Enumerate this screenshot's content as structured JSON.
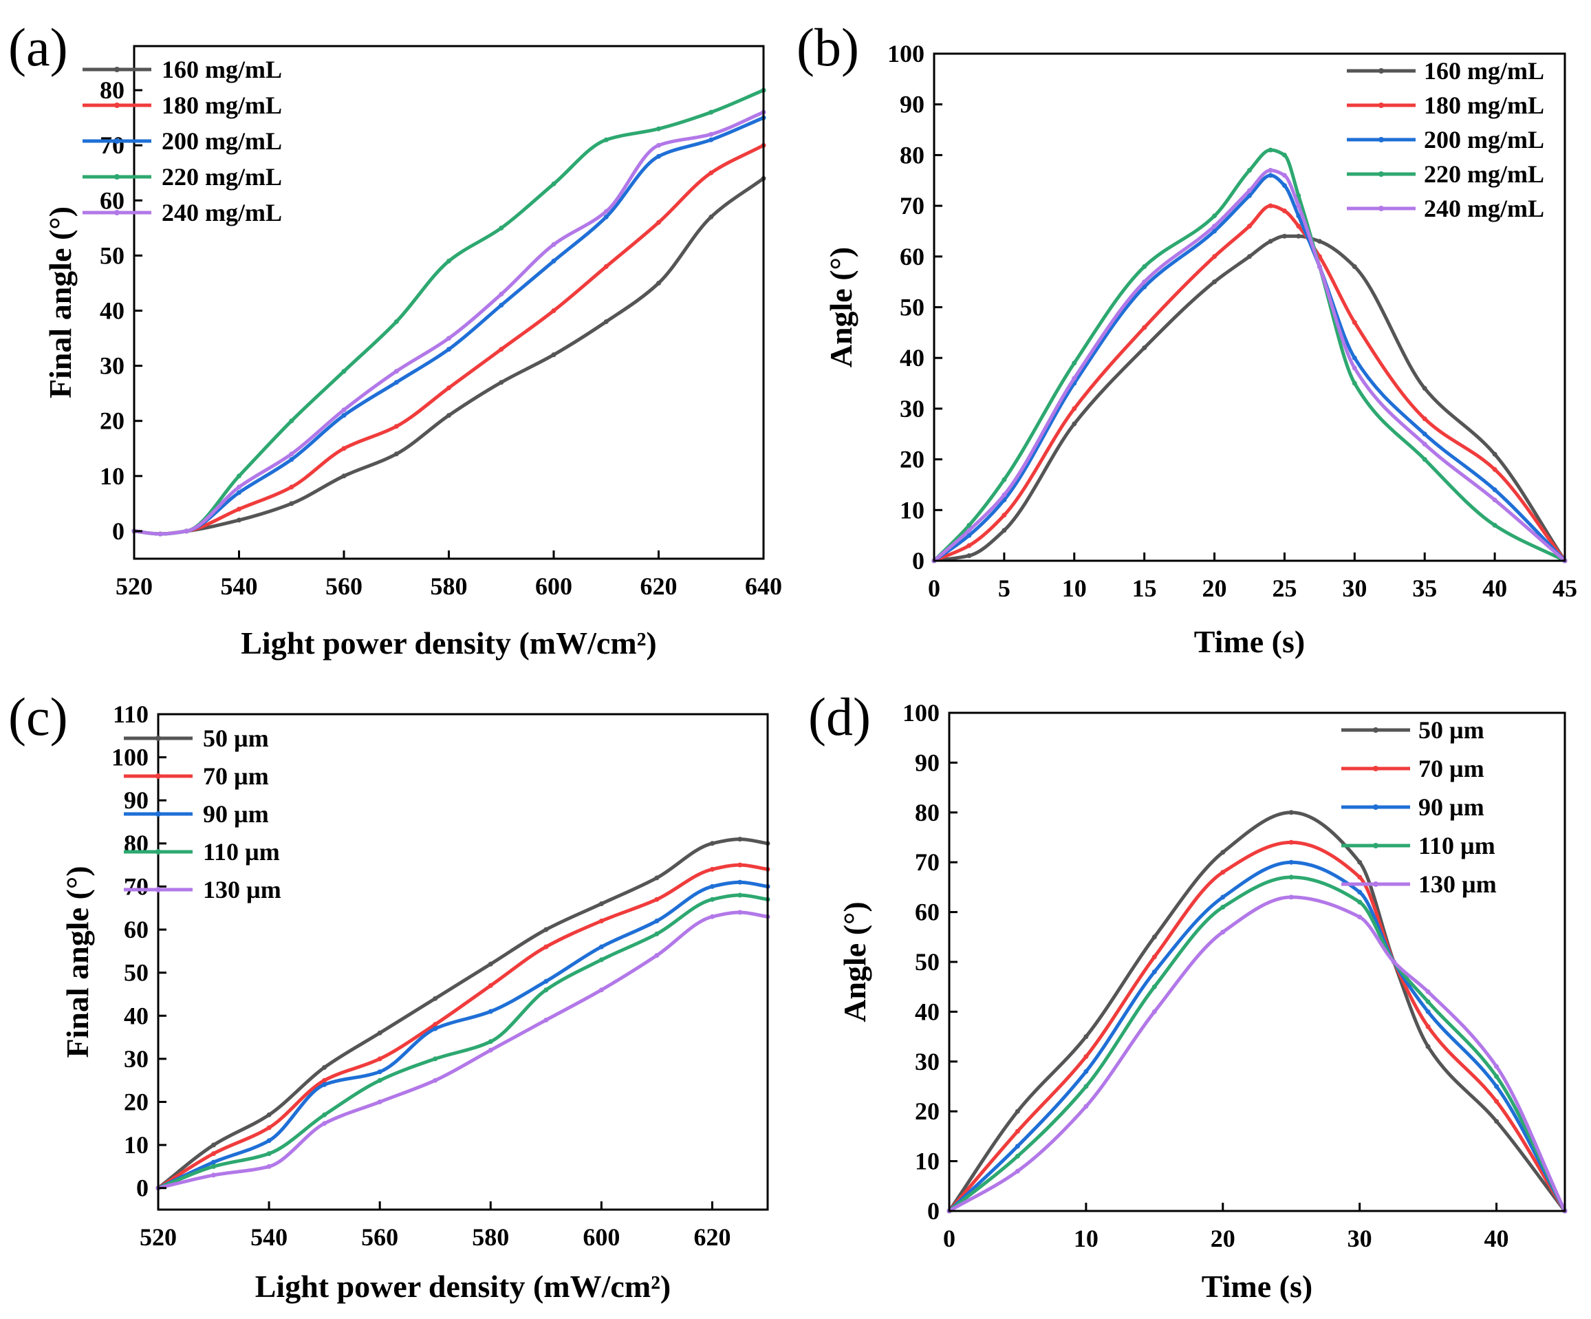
{
  "chart_data": [
    {
      "panel": "(a)",
      "type": "line",
      "xlabel": "Light power density (mW/cm²)",
      "ylabel": "Final angle (°)",
      "xlim": [
        520,
        640
      ],
      "ylim": [
        -5,
        88
      ],
      "xticks": [
        "520",
        "540",
        "560",
        "580",
        "600",
        "620",
        "640"
      ],
      "yticks": [
        "0",
        "10",
        "20",
        "30",
        "40",
        "50",
        "60",
        "70",
        "80"
      ],
      "legend_position": "top-left",
      "x": [
        520,
        525,
        530,
        540,
        550,
        560,
        570,
        580,
        590,
        600,
        610,
        620,
        630,
        640
      ],
      "series": [
        {
          "name": "160 mg/mL",
          "color": "#555555",
          "values": [
            0,
            -0.5,
            0,
            2,
            5,
            10,
            14,
            21,
            27,
            32,
            38,
            45,
            57,
            64
          ]
        },
        {
          "name": "180 mg/mL",
          "color": "#f03c3c",
          "values": [
            0,
            -0.5,
            0,
            4,
            8,
            15,
            19,
            26,
            33,
            40,
            48,
            56,
            65,
            70
          ]
        },
        {
          "name": "200 mg/mL",
          "color": "#1f6fd6",
          "values": [
            0,
            -0.5,
            0,
            7,
            13,
            21,
            27,
            33,
            41,
            49,
            57,
            68,
            71,
            75
          ]
        },
        {
          "name": "220 mg/mL",
          "color": "#2da870",
          "values": [
            0,
            -0.5,
            0,
            10,
            20,
            29,
            38,
            49,
            55,
            63,
            71,
            73,
            76,
            80
          ]
        },
        {
          "name": "240 mg/mL",
          "color": "#b278e8",
          "values": [
            0,
            -0.5,
            0,
            8,
            14,
            22,
            29,
            35,
            43,
            52,
            58,
            70,
            72,
            76
          ]
        }
      ]
    },
    {
      "panel": "(b)",
      "type": "line",
      "xlabel": "Time (s)",
      "ylabel": "Angle (°)",
      "xlim": [
        0,
        45
      ],
      "ylim": [
        0,
        100
      ],
      "xticks": [
        "0",
        "5",
        "10",
        "15",
        "20",
        "25",
        "30",
        "35",
        "40",
        "45"
      ],
      "yticks": [
        "0",
        "10",
        "20",
        "30",
        "40",
        "50",
        "60",
        "70",
        "80",
        "90",
        "100"
      ],
      "legend_position": "top-right",
      "x": [
        0,
        2.5,
        5,
        10,
        15,
        20,
        22.5,
        24,
        25,
        26,
        27.5,
        30,
        35,
        40,
        45
      ],
      "series": [
        {
          "name": "160 mg/mL",
          "color": "#555555",
          "values": [
            0,
            1,
            6,
            27,
            42,
            55,
            60,
            63,
            64,
            64,
            63,
            58,
            34,
            21,
            0
          ]
        },
        {
          "name": "180 mg/mL",
          "color": "#f03c3c",
          "values": [
            0,
            3,
            9,
            30,
            46,
            60,
            66,
            70,
            69,
            66,
            60,
            47,
            28,
            18,
            0
          ]
        },
        {
          "name": "200 mg/mL",
          "color": "#1f6fd6",
          "values": [
            0,
            5,
            12,
            35,
            54,
            65,
            72,
            76,
            74,
            68,
            58,
            40,
            25,
            14,
            0
          ]
        },
        {
          "name": "220 mg/mL",
          "color": "#2da870",
          "values": [
            0,
            7,
            16,
            39,
            58,
            68,
            77,
            81,
            80,
            72,
            58,
            35,
            20,
            7,
            0
          ]
        },
        {
          "name": "240 mg/mL",
          "color": "#b278e8",
          "values": [
            0,
            6,
            13,
            36,
            55,
            66,
            73,
            77,
            76,
            70,
            58,
            38,
            23,
            12,
            0
          ]
        }
      ]
    },
    {
      "panel": "(c)",
      "type": "line",
      "xlabel": "Light power density (mW/cm²)",
      "ylabel": "Final angle (°)",
      "xlim": [
        520,
        630
      ],
      "ylim": [
        -5,
        110
      ],
      "xticks": [
        "520",
        "540",
        "560",
        "580",
        "600",
        "620"
      ],
      "yticks": [
        "0",
        "10",
        "20",
        "30",
        "40",
        "50",
        "60",
        "70",
        "80",
        "90",
        "100",
        "110"
      ],
      "legend_position": "top-left",
      "x": [
        520,
        530,
        540,
        550,
        560,
        570,
        580,
        590,
        600,
        610,
        620,
        625,
        630
      ],
      "series": [
        {
          "name": "50 µm",
          "color": "#555555",
          "values": [
            0,
            10,
            17,
            28,
            36,
            44,
            52,
            60,
            66,
            72,
            80,
            81,
            80
          ]
        },
        {
          "name": "70 µm",
          "color": "#f03c3c",
          "values": [
            0,
            8,
            14,
            25,
            30,
            38,
            47,
            56,
            62,
            67,
            74,
            75,
            74
          ]
        },
        {
          "name": "90 µm",
          "color": "#1f6fd6",
          "values": [
            0,
            6,
            11,
            24,
            27,
            37,
            41,
            48,
            56,
            62,
            70,
            71,
            70
          ]
        },
        {
          "name": "110 µm",
          "color": "#2da870",
          "values": [
            0,
            5,
            8,
            17,
            25,
            30,
            34,
            46,
            53,
            59,
            67,
            68,
            67
          ]
        },
        {
          "name": "130 µm",
          "color": "#b278e8",
          "values": [
            0,
            3,
            5,
            15,
            20,
            25,
            32,
            39,
            46,
            54,
            63,
            64,
            63
          ]
        }
      ]
    },
    {
      "panel": "(d)",
      "type": "line",
      "xlabel": "Time (s)",
      "ylabel": "Angle (°)",
      "xlim": [
        0,
        45
      ],
      "ylim": [
        0,
        100
      ],
      "xticks": [
        "0",
        "10",
        "20",
        "30",
        "40"
      ],
      "yticks": [
        "0",
        "10",
        "20",
        "30",
        "40",
        "50",
        "60",
        "70",
        "80",
        "90",
        "100"
      ],
      "legend_position": "top-right",
      "x": [
        0,
        5,
        10,
        15,
        20,
        25,
        30,
        32.5,
        35,
        40,
        45
      ],
      "series": [
        {
          "name": "50 µm",
          "color": "#555555",
          "values": [
            0,
            20,
            35,
            55,
            72,
            80,
            70,
            50,
            33,
            18,
            0
          ]
        },
        {
          "name": "70 µm",
          "color": "#f03c3c",
          "values": [
            0,
            16,
            31,
            51,
            68,
            74,
            67,
            50,
            37,
            22,
            0
          ]
        },
        {
          "name": "90 µm",
          "color": "#1f6fd6",
          "values": [
            0,
            13,
            28,
            48,
            63,
            70,
            64,
            50,
            40,
            25,
            0
          ]
        },
        {
          "name": "110 µm",
          "color": "#2da870",
          "values": [
            0,
            11,
            25,
            45,
            61,
            67,
            62,
            50,
            42,
            27,
            0
          ]
        },
        {
          "name": "130 µm",
          "color": "#b278e8",
          "values": [
            0,
            8,
            21,
            40,
            56,
            63,
            59,
            50,
            44,
            29,
            0
          ]
        }
      ]
    }
  ]
}
